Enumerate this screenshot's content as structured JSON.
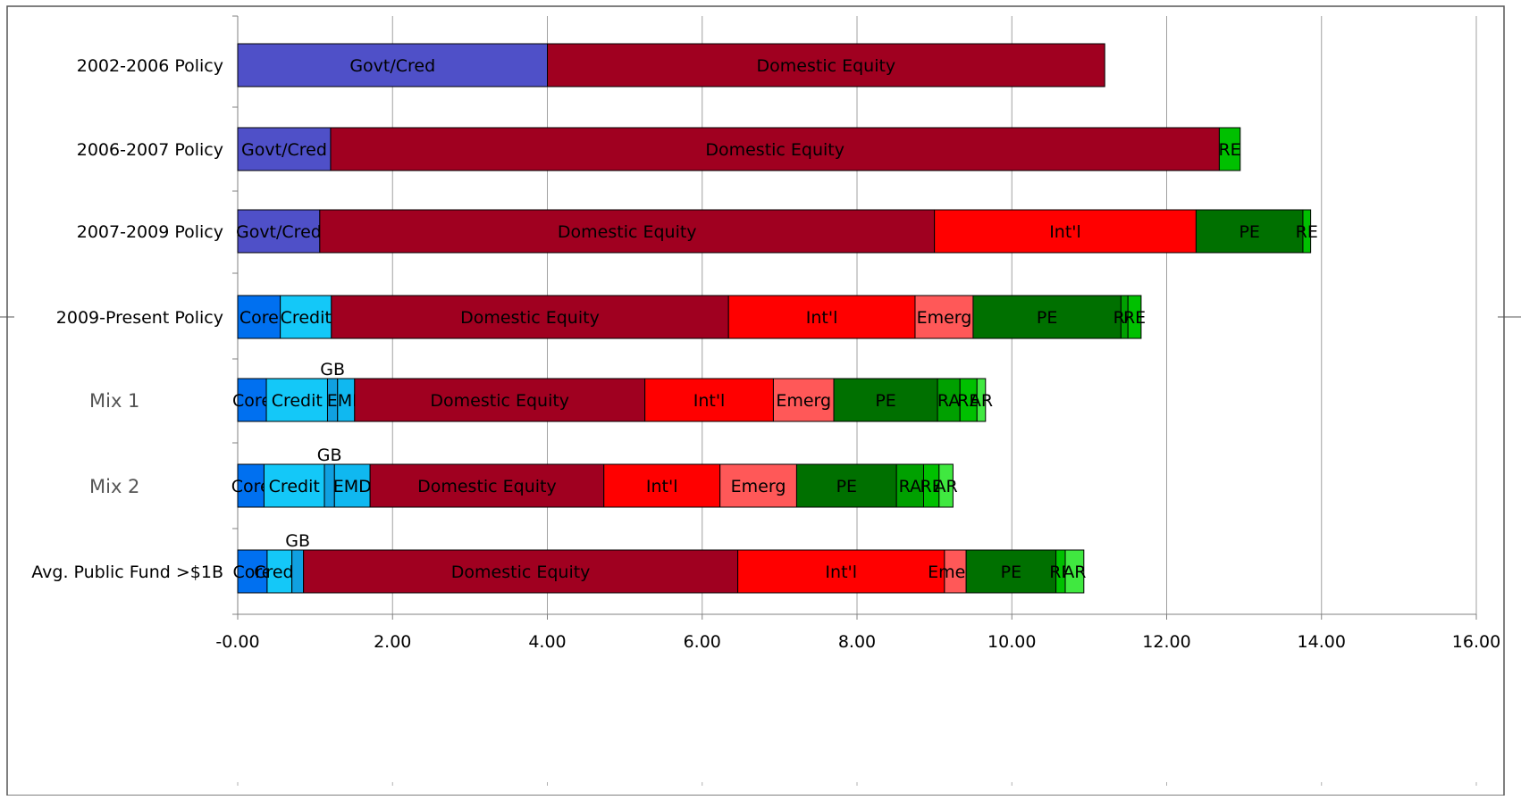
{
  "chart_data": {
    "type": "bar",
    "orientation": "horizontal",
    "stacked": true,
    "title": "",
    "xlabel": "",
    "ylabel": "",
    "xlim": [
      0,
      16
    ],
    "xticks": [
      "-0.00",
      "2.00",
      "4.00",
      "6.00",
      "8.00",
      "10.00",
      "12.00",
      "14.00",
      "16.00"
    ],
    "grid": "vertical",
    "legend": "none",
    "colors": {
      "Govt/Cred": "#4f50c8",
      "Core": "#0070f0",
      "Credit": "#14c8f8",
      "GB": "#10a0e0",
      "EMD": "#10b8f0",
      "Domestic Equity": "#a00020",
      "Int'l": "#ff0000",
      "Emerg": "#ff5858",
      "PE": "#007000",
      "RA": "#00a000",
      "RE": "#00c000",
      "AR": "#40e840"
    },
    "categories": [
      {
        "name": "2002-2006 Policy",
        "style": "normal",
        "segments": [
          {
            "label": "Govt/Cred",
            "value": 4.0
          },
          {
            "label": "Domestic Equity",
            "value": 7.2
          }
        ]
      },
      {
        "name": "2006-2007 Policy",
        "style": "normal",
        "segments": [
          {
            "label": "Govt/Cred",
            "value": 1.2
          },
          {
            "label": "Domestic Equity",
            "value": 11.48
          },
          {
            "label": "RE",
            "value": 0.27
          }
        ]
      },
      {
        "name": "2007-2009 Policy",
        "style": "normal",
        "segments": [
          {
            "label": "Govt/Cred",
            "value": 1.06
          },
          {
            "label": "Domestic Equity",
            "value": 7.94
          },
          {
            "label": "Int'l",
            "value": 3.38
          },
          {
            "label": "PE",
            "value": 1.38
          },
          {
            "label": "RE",
            "value": 0.1
          }
        ]
      },
      {
        "name": "2009-Present Policy",
        "style": "normal",
        "segments": [
          {
            "label": "Core",
            "value": 0.55
          },
          {
            "label": "Credit",
            "value": 0.66
          },
          {
            "label": "Domestic Equity",
            "value": 5.13
          },
          {
            "label": "Int'l",
            "value": 2.41
          },
          {
            "label": "Emerg",
            "value": 0.75
          },
          {
            "label": "PE",
            "value": 1.91
          },
          {
            "label": "RA",
            "value": 0.09
          },
          {
            "label": "RE",
            "value": 0.17
          }
        ]
      },
      {
        "name": "Mix 1",
        "style": "mix",
        "segments": [
          {
            "label": "Core",
            "value": 0.37
          },
          {
            "label": "Credit",
            "value": 0.79
          },
          {
            "label": "GB",
            "value": 0.13
          },
          {
            "label": "EMD",
            "value": 0.22
          },
          {
            "label": "Domestic Equity",
            "value": 3.75
          },
          {
            "label": "Int'l",
            "value": 1.66
          },
          {
            "label": "Emerg",
            "value": 0.78
          },
          {
            "label": "PE",
            "value": 1.34
          },
          {
            "label": "RA",
            "value": 0.29
          },
          {
            "label": "RE",
            "value": 0.22
          },
          {
            "label": "AR",
            "value": 0.11
          }
        ]
      },
      {
        "name": "Mix 2",
        "style": "mix",
        "segments": [
          {
            "label": "Core",
            "value": 0.34
          },
          {
            "label": "Credit",
            "value": 0.78
          },
          {
            "label": "GB",
            "value": 0.13
          },
          {
            "label": "EMD",
            "value": 0.46
          },
          {
            "label": "Domestic Equity",
            "value": 3.02
          },
          {
            "label": "Int'l",
            "value": 1.5
          },
          {
            "label": "Emerg",
            "value": 0.99
          },
          {
            "label": "PE",
            "value": 1.29
          },
          {
            "label": "RA",
            "value": 0.35
          },
          {
            "label": "RE",
            "value": 0.2
          },
          {
            "label": "AR",
            "value": 0.18
          }
        ]
      },
      {
        "name": "Avg. Public Fund >$1B",
        "style": "normal",
        "segments": [
          {
            "label": "Core",
            "value": 0.38
          },
          {
            "label": "Credit",
            "value": 0.32
          },
          {
            "label": "GB",
            "value": 0.15
          },
          {
            "label": "Domestic Equity",
            "value": 5.61
          },
          {
            "label": "Int'l",
            "value": 2.67
          },
          {
            "label": "Emerg",
            "value": 0.28
          },
          {
            "label": "PE",
            "value": 1.16
          },
          {
            "label": "RE",
            "value": 0.12
          },
          {
            "label": "AR",
            "value": 0.24
          }
        ]
      }
    ]
  }
}
